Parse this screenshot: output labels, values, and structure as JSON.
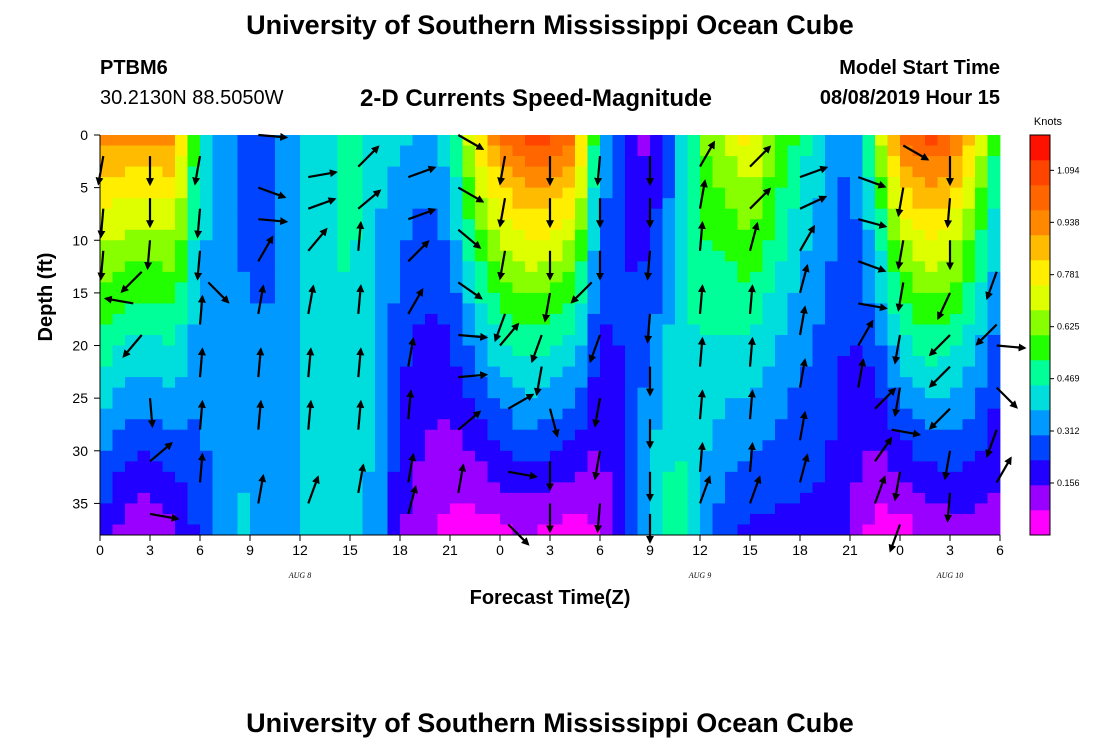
{
  "header": {
    "title": "University of Southern Mississippi Ocean Cube",
    "station_id": "PTBM6",
    "station_coords": "30.2130N 88.5050W",
    "chart_title": "2-D Currents Speed-Magnitude",
    "model_start_label": "Model Start Time",
    "model_start_value": "08/08/2019 Hour 15"
  },
  "footer": {
    "title": "University of Southern Mississippi Ocean Cube"
  },
  "chart_data": {
    "type": "heatmap",
    "title": "2-D Currents Speed-Magnitude",
    "xlabel": "Forecast Time(Z)",
    "ylabel": "Depth (ft)",
    "x_unit": "hours since 2019-08-08 00Z",
    "x_ticks": [
      0,
      3,
      6,
      9,
      12,
      15,
      18,
      21,
      24,
      27,
      30,
      33,
      36,
      39,
      42,
      45,
      48,
      51,
      54
    ],
    "x_tick_labels": [
      "0",
      "3",
      "6",
      "9",
      "12",
      "15",
      "18",
      "21",
      "0",
      "3",
      "6",
      "9",
      "12",
      "15",
      "18",
      "21",
      "0",
      "3",
      "6"
    ],
    "date_labels": [
      {
        "label": "AUG 8",
        "x": 12
      },
      {
        "label": "AUG 9",
        "x": 36
      },
      {
        "label": "AUG 10",
        "x": 51
      }
    ],
    "y_ticks": [
      0,
      5,
      10,
      15,
      20,
      25,
      30,
      35
    ],
    "ylim": [
      38,
      0
    ],
    "xlim": [
      0,
      54
    ],
    "colorbar": {
      "label": "Knots",
      "vmin": 0,
      "vmax": 1.2,
      "ticks": [
        0.156,
        0.312,
        0.469,
        0.625,
        0.781,
        0.938,
        1.094
      ],
      "colors": [
        "#ff00ff",
        "#9900ff",
        "#2200ff",
        "#0044ff",
        "#0099ff",
        "#00dddd",
        "#00ff99",
        "#22ff00",
        "#88ff00",
        "#ddff00",
        "#ffee00",
        "#ffbb00",
        "#ff8800",
        "#ff6600",
        "#ff4400",
        "#ff1100"
      ]
    },
    "speed_profile": [
      {
        "x": 0,
        "top": 0.95,
        "bottom": 0.2
      },
      {
        "x": 1.5,
        "top": 0.95,
        "bottom": 0.1
      },
      {
        "x": 3,
        "top": 0.95,
        "bottom": 0.08
      },
      {
        "x": 4.5,
        "top": 0.95,
        "bottom": 0.12
      },
      {
        "x": 6,
        "top": 0.45,
        "bottom": 0.25
      },
      {
        "x": 7.5,
        "top": 0.35,
        "bottom": 0.35
      },
      {
        "x": 9,
        "top": 0.2,
        "bottom": 0.4
      },
      {
        "x": 10.5,
        "top": 0.3,
        "bottom": 0.3
      },
      {
        "x": 12,
        "top": 0.38,
        "bottom": 0.4
      },
      {
        "x": 13.5,
        "top": 0.4,
        "bottom": 0.4
      },
      {
        "x": 15,
        "top": 0.5,
        "bottom": 0.42
      },
      {
        "x": 16.5,
        "top": 0.4,
        "bottom": 0.35
      },
      {
        "x": 18,
        "top": 0.4,
        "bottom": 0.15
      },
      {
        "x": 19.5,
        "top": 0.35,
        "bottom": 0.1
      },
      {
        "x": 21,
        "top": 0.45,
        "bottom": 0.05
      },
      {
        "x": 22.5,
        "top": 0.8,
        "bottom": 0.03
      },
      {
        "x": 24,
        "top": 1.0,
        "bottom": 0.05
      },
      {
        "x": 25.5,
        "top": 1.1,
        "bottom": 0.08
      },
      {
        "x": 27,
        "top": 1.1,
        "bottom": 0.05
      },
      {
        "x": 28.5,
        "top": 1.0,
        "bottom": 0.03
      },
      {
        "x": 30,
        "top": 0.4,
        "bottom": 0.08
      },
      {
        "x": 31.5,
        "top": 0.2,
        "bottom": 0.25
      },
      {
        "x": 33,
        "top": 0.1,
        "bottom": 0.42
      },
      {
        "x": 34.5,
        "top": 0.3,
        "bottom": 0.5
      },
      {
        "x": 36,
        "top": 0.6,
        "bottom": 0.35
      },
      {
        "x": 37.5,
        "top": 0.7,
        "bottom": 0.25
      },
      {
        "x": 39,
        "top": 0.8,
        "bottom": 0.2
      },
      {
        "x": 40.5,
        "top": 0.65,
        "bottom": 0.2
      },
      {
        "x": 42,
        "top": 0.5,
        "bottom": 0.2
      },
      {
        "x": 43.5,
        "top": 0.4,
        "bottom": 0.2
      },
      {
        "x": 45,
        "top": 0.3,
        "bottom": 0.15
      },
      {
        "x": 46.5,
        "top": 0.6,
        "bottom": 0.04
      },
      {
        "x": 48,
        "top": 1.0,
        "bottom": 0.03
      },
      {
        "x": 49.5,
        "top": 1.1,
        "bottom": 0.08
      },
      {
        "x": 51,
        "top": 1.05,
        "bottom": 0.1
      },
      {
        "x": 52.5,
        "top": 0.8,
        "bottom": 0.12
      },
      {
        "x": 54,
        "top": 0.5,
        "bottom": 0.1
      }
    ],
    "vectors": [
      {
        "x": 0.2,
        "depth": 2,
        "angle": -100
      },
      {
        "x": 0.2,
        "depth": 7,
        "angle": -95
      },
      {
        "x": 0.2,
        "depth": 11,
        "angle": -95
      },
      {
        "x": 2.5,
        "depth": 13,
        "angle": -135
      },
      {
        "x": 2,
        "depth": 16,
        "angle": 170
      },
      {
        "x": 2.5,
        "depth": 19,
        "angle": -130
      },
      {
        "x": 3,
        "depth": 2,
        "angle": -90
      },
      {
        "x": 3,
        "depth": 6,
        "angle": -90
      },
      {
        "x": 3,
        "depth": 10,
        "angle": -95
      },
      {
        "x": 3,
        "depth": 25,
        "angle": -85
      },
      {
        "x": 3,
        "depth": 31,
        "angle": 40
      },
      {
        "x": 3,
        "depth": 36,
        "angle": -10
      },
      {
        "x": 6,
        "depth": 2,
        "angle": -100
      },
      {
        "x": 6,
        "depth": 7,
        "angle": -95
      },
      {
        "x": 6,
        "depth": 11,
        "angle": -95
      },
      {
        "x": 6.5,
        "depth": 14,
        "angle": -45
      },
      {
        "x": 6,
        "depth": 18,
        "angle": 85
      },
      {
        "x": 6,
        "depth": 23,
        "angle": 85
      },
      {
        "x": 6,
        "depth": 28,
        "angle": 85
      },
      {
        "x": 6,
        "depth": 33,
        "angle": 85
      },
      {
        "x": 9.5,
        "depth": 0,
        "angle": -5
      },
      {
        "x": 9.5,
        "depth": 5,
        "angle": -20
      },
      {
        "x": 9.5,
        "depth": 8,
        "angle": -5
      },
      {
        "x": 9.5,
        "depth": 12,
        "angle": 60
      },
      {
        "x": 9.5,
        "depth": 17,
        "angle": 80
      },
      {
        "x": 9.5,
        "depth": 23,
        "angle": 85
      },
      {
        "x": 9.5,
        "depth": 28,
        "angle": 85
      },
      {
        "x": 9.5,
        "depth": 35,
        "angle": 80
      },
      {
        "x": 12.5,
        "depth": 4,
        "angle": 10
      },
      {
        "x": 12.5,
        "depth": 7,
        "angle": 20
      },
      {
        "x": 12.5,
        "depth": 11,
        "angle": 50
      },
      {
        "x": 12.5,
        "depth": 17,
        "angle": 80
      },
      {
        "x": 12.5,
        "depth": 23,
        "angle": 85
      },
      {
        "x": 12.5,
        "depth": 28,
        "angle": 85
      },
      {
        "x": 12.5,
        "depth": 35,
        "angle": 70
      },
      {
        "x": 15.5,
        "depth": 3,
        "angle": 45
      },
      {
        "x": 15.5,
        "depth": 7,
        "angle": 40
      },
      {
        "x": 15.5,
        "depth": 11,
        "angle": 85
      },
      {
        "x": 15.5,
        "depth": 17,
        "angle": 85
      },
      {
        "x": 15.5,
        "depth": 23,
        "angle": 85
      },
      {
        "x": 15.5,
        "depth": 28,
        "angle": 85
      },
      {
        "x": 15.5,
        "depth": 34,
        "angle": 80
      },
      {
        "x": 18.5,
        "depth": 4,
        "angle": 20
      },
      {
        "x": 18.5,
        "depth": 8,
        "angle": 20
      },
      {
        "x": 18.5,
        "depth": 12,
        "angle": 45
      },
      {
        "x": 18.5,
        "depth": 17,
        "angle": 60
      },
      {
        "x": 18.5,
        "depth": 22,
        "angle": 80
      },
      {
        "x": 18.5,
        "depth": 27,
        "angle": 85
      },
      {
        "x": 18.5,
        "depth": 33,
        "angle": 80
      },
      {
        "x": 18.5,
        "depth": 36,
        "angle": 75
      },
      {
        "x": 21.5,
        "depth": 0,
        "angle": -30
      },
      {
        "x": 21.5,
        "depth": 5,
        "angle": -30
      },
      {
        "x": 21.5,
        "depth": 9,
        "angle": -40
      },
      {
        "x": 21.5,
        "depth": 14,
        "angle": -35
      },
      {
        "x": 21.5,
        "depth": 19,
        "angle": -5
      },
      {
        "x": 21.5,
        "depth": 23,
        "angle": 5
      },
      {
        "x": 21.5,
        "depth": 28,
        "angle": 40
      },
      {
        "x": 21.5,
        "depth": 34,
        "angle": 80
      },
      {
        "x": 24.3,
        "depth": 2,
        "angle": -100
      },
      {
        "x": 24.3,
        "depth": 6,
        "angle": -100
      },
      {
        "x": 24.3,
        "depth": 11,
        "angle": -100
      },
      {
        "x": 24.3,
        "depth": 17,
        "angle": -110
      },
      {
        "x": 24,
        "depth": 20,
        "angle": 50
      },
      {
        "x": 24.5,
        "depth": 26,
        "angle": 30
      },
      {
        "x": 24.5,
        "depth": 32,
        "angle": -10
      },
      {
        "x": 24.5,
        "depth": 37,
        "angle": -45
      },
      {
        "x": 27,
        "depth": 2,
        "angle": -90
      },
      {
        "x": 27,
        "depth": 6,
        "angle": -90
      },
      {
        "x": 27,
        "depth": 11,
        "angle": -90
      },
      {
        "x": 27,
        "depth": 15,
        "angle": -100
      },
      {
        "x": 26.5,
        "depth": 19,
        "angle": -110
      },
      {
        "x": 26.5,
        "depth": 22,
        "angle": -100
      },
      {
        "x": 27,
        "depth": 26,
        "angle": -75
      },
      {
        "x": 27,
        "depth": 31,
        "angle": -90
      },
      {
        "x": 27,
        "depth": 35,
        "angle": -90
      },
      {
        "x": 30,
        "depth": 2,
        "angle": -95
      },
      {
        "x": 30,
        "depth": 6,
        "angle": -90
      },
      {
        "x": 30,
        "depth": 11,
        "angle": -90
      },
      {
        "x": 29.5,
        "depth": 14,
        "angle": -135
      },
      {
        "x": 30,
        "depth": 19,
        "angle": -110
      },
      {
        "x": 30,
        "depth": 25,
        "angle": -100
      },
      {
        "x": 30,
        "depth": 30,
        "angle": -100
      },
      {
        "x": 30,
        "depth": 35,
        "angle": -95
      },
      {
        "x": 33,
        "depth": 2,
        "angle": -90
      },
      {
        "x": 33,
        "depth": 6,
        "angle": -90
      },
      {
        "x": 33,
        "depth": 11,
        "angle": -95
      },
      {
        "x": 33,
        "depth": 17,
        "angle": -95
      },
      {
        "x": 33,
        "depth": 22,
        "angle": -90
      },
      {
        "x": 33,
        "depth": 27,
        "angle": -90
      },
      {
        "x": 33,
        "depth": 32,
        "angle": -90
      },
      {
        "x": 33,
        "depth": 36,
        "angle": -90
      },
      {
        "x": 36,
        "depth": 3,
        "angle": 60
      },
      {
        "x": 36,
        "depth": 7,
        "angle": 80
      },
      {
        "x": 36,
        "depth": 11,
        "angle": 85
      },
      {
        "x": 36,
        "depth": 17,
        "angle": 85
      },
      {
        "x": 36,
        "depth": 22,
        "angle": 85
      },
      {
        "x": 36,
        "depth": 27,
        "angle": 85
      },
      {
        "x": 36,
        "depth": 32,
        "angle": 85
      },
      {
        "x": 36,
        "depth": 35,
        "angle": 70
      },
      {
        "x": 39,
        "depth": 3,
        "angle": 45
      },
      {
        "x": 39,
        "depth": 7,
        "angle": 45
      },
      {
        "x": 39,
        "depth": 11,
        "angle": 75
      },
      {
        "x": 39,
        "depth": 17,
        "angle": 85
      },
      {
        "x": 39,
        "depth": 22,
        "angle": 85
      },
      {
        "x": 39,
        "depth": 27,
        "angle": 85
      },
      {
        "x": 39,
        "depth": 32,
        "angle": 85
      },
      {
        "x": 39,
        "depth": 35,
        "angle": 70
      },
      {
        "x": 42,
        "depth": 4,
        "angle": 20
      },
      {
        "x": 42,
        "depth": 7,
        "angle": 25
      },
      {
        "x": 42,
        "depth": 11,
        "angle": 60
      },
      {
        "x": 42,
        "depth": 15,
        "angle": 75
      },
      {
        "x": 42,
        "depth": 19,
        "angle": 80
      },
      {
        "x": 42,
        "depth": 24,
        "angle": 80
      },
      {
        "x": 42,
        "depth": 29,
        "angle": 80
      },
      {
        "x": 42,
        "depth": 33,
        "angle": 75
      },
      {
        "x": 45.5,
        "depth": 4,
        "angle": -20
      },
      {
        "x": 45.5,
        "depth": 8,
        "angle": -15
      },
      {
        "x": 45.5,
        "depth": 12,
        "angle": -20
      },
      {
        "x": 45.5,
        "depth": 16,
        "angle": -10
      },
      {
        "x": 45.5,
        "depth": 20,
        "angle": 60
      },
      {
        "x": 45.5,
        "depth": 24,
        "angle": 80
      },
      {
        "x": 46.5,
        "depth": 26,
        "angle": 45
      },
      {
        "x": 46.5,
        "depth": 31,
        "angle": 55
      },
      {
        "x": 46.5,
        "depth": 35,
        "angle": 70
      },
      {
        "x": 48.2,
        "depth": 1,
        "angle": -30
      },
      {
        "x": 48.2,
        "depth": 5,
        "angle": -100
      },
      {
        "x": 48.2,
        "depth": 10,
        "angle": -100
      },
      {
        "x": 48.2,
        "depth": 14,
        "angle": -100
      },
      {
        "x": 48,
        "depth": 19,
        "angle": -100
      },
      {
        "x": 48,
        "depth": 24,
        "angle": -100
      },
      {
        "x": 47.5,
        "depth": 28,
        "angle": -10
      },
      {
        "x": 48,
        "depth": 32,
        "angle": -100
      },
      {
        "x": 48,
        "depth": 37,
        "angle": -110
      },
      {
        "x": 51,
        "depth": 2,
        "angle": -90
      },
      {
        "x": 51,
        "depth": 6,
        "angle": -95
      },
      {
        "x": 51,
        "depth": 10,
        "angle": -90
      },
      {
        "x": 51,
        "depth": 15,
        "angle": -115
      },
      {
        "x": 51,
        "depth": 19,
        "angle": -135
      },
      {
        "x": 51,
        "depth": 22,
        "angle": -135
      },
      {
        "x": 51,
        "depth": 26,
        "angle": -135
      },
      {
        "x": 51,
        "depth": 30,
        "angle": -100
      },
      {
        "x": 51,
        "depth": 34,
        "angle": -95
      },
      {
        "x": 53.8,
        "depth": 13,
        "angle": -110
      },
      {
        "x": 53.8,
        "depth": 18,
        "angle": -135
      },
      {
        "x": 53.8,
        "depth": 20,
        "angle": -5
      },
      {
        "x": 53.8,
        "depth": 24,
        "angle": -45
      },
      {
        "x": 53.8,
        "depth": 28,
        "angle": -110
      },
      {
        "x": 53.8,
        "depth": 33,
        "angle": 60
      }
    ]
  }
}
